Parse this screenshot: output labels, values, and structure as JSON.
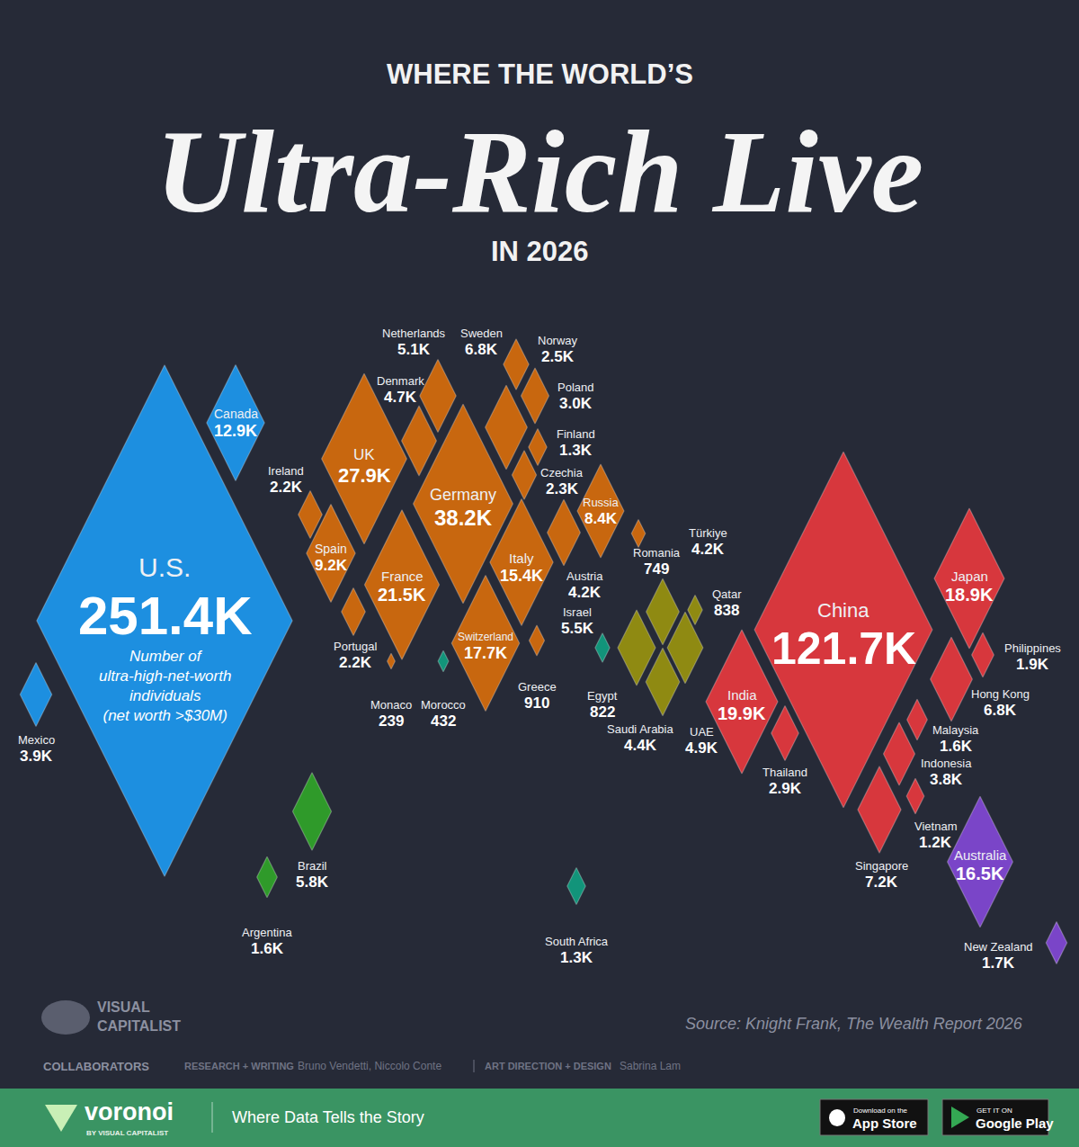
{
  "chart_data": {
    "type": "scatter",
    "marker": "diamond",
    "title": [
      "WHERE THE WORLD’S",
      "Ultra-Rich Live",
      "IN 2026"
    ],
    "annotations": {
      "note": [
        "Number of",
        "ultra-high-net-worth",
        "individuals",
        "(net worth >$30M)"
      ],
      "source": "Source: Knight Frank, The Wealth Report 2026"
    },
    "data_labels": true,
    "tick_labels": false,
    "categories": [
      "U.S.",
      "China",
      "Germany",
      "UK",
      "France",
      "India",
      "Japan",
      "Switzerland",
      "Australia",
      "Italy",
      "Canada",
      "Spain",
      "Russia",
      "Singapore",
      "Sweden",
      "Hong Kong",
      "Brazil",
      "Israel",
      "Netherlands",
      "UAE",
      "Denmark",
      "Saudi Arabia",
      "Türkiye",
      "Austria",
      "Mexico",
      "Indonesia",
      "Poland",
      "Thailand",
      "Norway",
      "Czechia",
      "Ireland",
      "Portugal",
      "Philippines",
      "New Zealand",
      "Argentina",
      "Malaysia",
      "Finland",
      "South Africa",
      "Vietnam",
      "Greece",
      "Qatar",
      "Egypt",
      "Romania",
      "Morocco",
      "Monaco"
    ],
    "values": [
      251400,
      121700,
      38200,
      27900,
      21500,
      19900,
      18900,
      17700,
      16500,
      15400,
      12900,
      9200,
      8400,
      7200,
      6800,
      6800,
      5800,
      5500,
      5100,
      4900,
      4700,
      4400,
      4200,
      4200,
      3900,
      3800,
      3000,
      2900,
      2500,
      2300,
      2200,
      2200,
      1900,
      1700,
      1600,
      1600,
      1300,
      1300,
      1200,
      910,
      838,
      822,
      749,
      432,
      239
    ],
    "value_labels": [
      "251.4K",
      "121.7K",
      "38.2K",
      "27.9K",
      "21.5K",
      "19.9K",
      "18.9K",
      "17.7K",
      "16.5K",
      "15.4K",
      "12.9K",
      "9.2K",
      "8.4K",
      "7.2K",
      "6.8K",
      "6.8K",
      "5.8K",
      "5.5K",
      "5.1K",
      "4.9K",
      "4.7K",
      "4.4K",
      "4.2K",
      "4.2K",
      "3.9K",
      "3.8K",
      "3.0K",
      "2.9K",
      "2.5K",
      "2.3K",
      "2.2K",
      "2.2K",
      "1.9K",
      "1.7K",
      "1.6K",
      "1.6K",
      "1.3K",
      "1.3K",
      "1.2K",
      "910",
      "838",
      "822",
      "749",
      "432",
      "239"
    ],
    "colors": [
      "#1d8fe0",
      "#d7373d",
      "#c8670f",
      "#c8670f",
      "#c8670f",
      "#d7373d",
      "#d7373d",
      "#c8670f",
      "#7a45c8",
      "#c8670f",
      "#1d8fe0",
      "#c8670f",
      "#c8670f",
      "#d7373d",
      "#c8670f",
      "#d7373d",
      "#2f9a2a",
      "#8f8a12",
      "#c8670f",
      "#8f8a12",
      "#c8670f",
      "#8f8a12",
      "#8f8a12",
      "#c8670f",
      "#1d8fe0",
      "#d7373d",
      "#c8670f",
      "#d7373d",
      "#c8670f",
      "#c8670f",
      "#c8670f",
      "#c8670f",
      "#d7373d",
      "#7a45c8",
      "#2f9a2a",
      "#d7373d",
      "#c8670f",
      "#12947a",
      "#d7373d",
      "#c8670f",
      "#8f8a12",
      "#12947a",
      "#c8670f",
      "#12947a",
      "#c8670f"
    ]
  },
  "credits": {
    "brand": [
      "VISUAL",
      "CAPITALIST"
    ],
    "collaborators": "COLLABORATORS",
    "research_label": "RESEARCH + WRITING",
    "research": "Bruno Vendetti, Niccolo Conte",
    "design_label": "ART DIRECTION + DESIGN",
    "design": "Sabrina Lam"
  },
  "footer": {
    "brand": "voronoi",
    "by": "BY VISUAL CAPITALIST",
    "tagline": "Where Data Tells the Story",
    "app_store": [
      "Download on the",
      "App Store"
    ],
    "google_play": [
      "GET IT ON",
      "Google Play"
    ]
  }
}
